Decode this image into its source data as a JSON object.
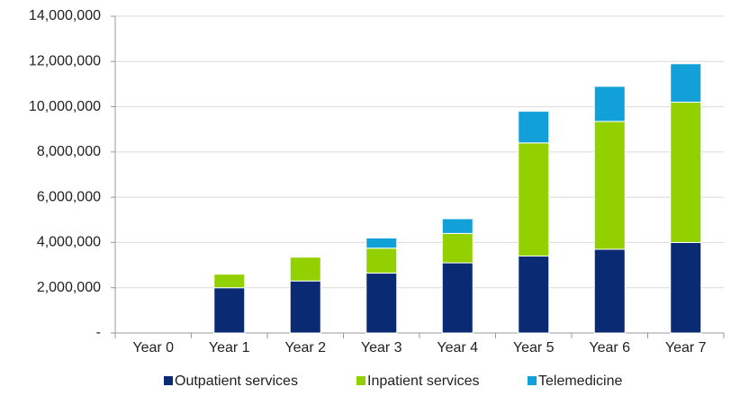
{
  "chart_data": {
    "type": "stacked_bar",
    "categories": [
      "Year 0",
      "Year 1",
      "Year 2",
      "Year 3",
      "Year 4",
      "Year 5",
      "Year 6",
      "Year 7"
    ],
    "series": [
      {
        "name": "Outpatient services",
        "color": "#0b2a74",
        "values": [
          0,
          2000000,
          2300000,
          2650000,
          3100000,
          3400000,
          3700000,
          4000000
        ]
      },
      {
        "name": "Inpatient services",
        "color": "#92d000",
        "values": [
          0,
          600000,
          1050000,
          1100000,
          1300000,
          5000000,
          5650000,
          6200000
        ]
      },
      {
        "name": "Telemedicine",
        "color": "#11a0d8",
        "values": [
          0,
          0,
          0,
          450000,
          650000,
          1400000,
          1550000,
          1700000
        ]
      }
    ],
    "ylim": [
      0,
      14000000
    ],
    "yticks": [
      {
        "value": 0,
        "label": "-"
      },
      {
        "value": 2000000,
        "label": "2,000,000"
      },
      {
        "value": 4000000,
        "label": "4,000,000"
      },
      {
        "value": 6000000,
        "label": "6,000,000"
      },
      {
        "value": 8000000,
        "label": "8,000,000"
      },
      {
        "value": 10000000,
        "label": "10,000,000"
      },
      {
        "value": 12000000,
        "label": "12,000,000"
      },
      {
        "value": 14000000,
        "label": "14,000,000"
      }
    ],
    "grid": true,
    "legend": "bottom"
  }
}
